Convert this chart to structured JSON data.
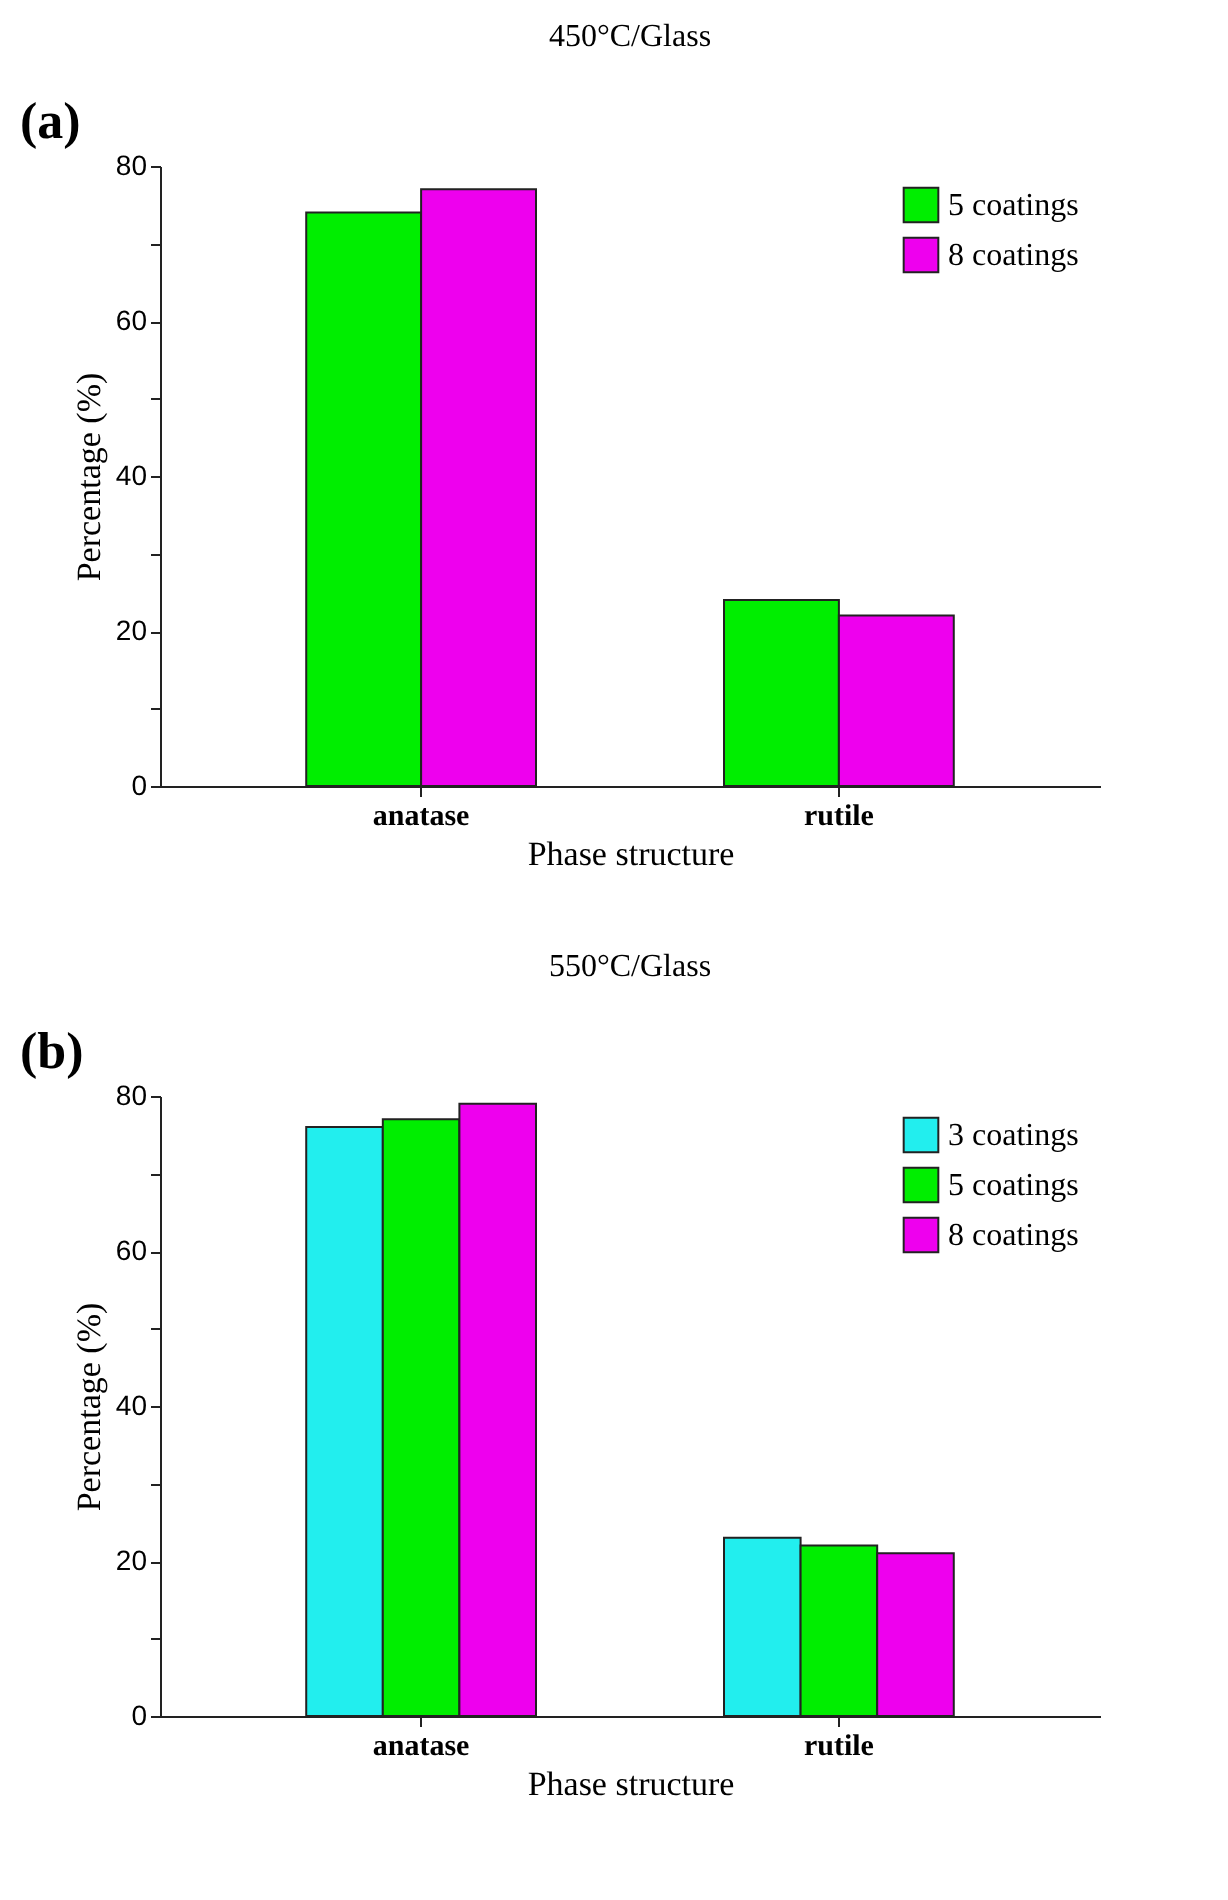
{
  "chart_data": [
    {
      "type": "bar",
      "title": "450°C/Glass",
      "xlabel": "Phase structure",
      "ylabel": "Percentage (%)",
      "annotations": [
        "(a)"
      ],
      "categories": [
        "anatase",
        "rutile"
      ],
      "series": [
        {
          "name": "5 coatings",
          "color": "#00ee00",
          "values": [
            74,
            24
          ]
        },
        {
          "name": "8 coatings",
          "color": "#ee00ee",
          "values": [
            77,
            22
          ]
        }
      ],
      "ylim": [
        0,
        80
      ],
      "yticks": [
        0,
        {
          "value": 10,
          "label": null
        },
        20,
        {
          "value": 30,
          "label": null
        },
        40,
        {
          "value": 50,
          "label": null
        },
        60,
        {
          "value": 70,
          "label": null
        },
        80
      ],
      "grid": false,
      "legend": "top right"
    },
    {
      "type": "bar",
      "title": "550°C/Glass",
      "xlabel": "Phase structure",
      "ylabel": "Percentage (%)",
      "annotations": [
        "(b)"
      ],
      "categories": [
        "anatase",
        "rutile"
      ],
      "series": [
        {
          "name": "3 coatings",
          "color": "#22eeee",
          "values": [
            76,
            23
          ]
        },
        {
          "name": "5 coatings",
          "color": "#00ee00",
          "values": [
            77,
            22
          ]
        },
        {
          "name": "8 coatings",
          "color": "#ee00ee",
          "values": [
            79,
            21
          ]
        }
      ],
      "ylim": [
        0,
        80
      ],
      "yticks": [
        0,
        {
          "value": 10,
          "label": null
        },
        20,
        {
          "value": 30,
          "label": null
        },
        40,
        {
          "value": 50,
          "label": null
        },
        60,
        {
          "value": 70,
          "label": null
        },
        80
      ],
      "grid": false,
      "legend": "top right"
    }
  ]
}
